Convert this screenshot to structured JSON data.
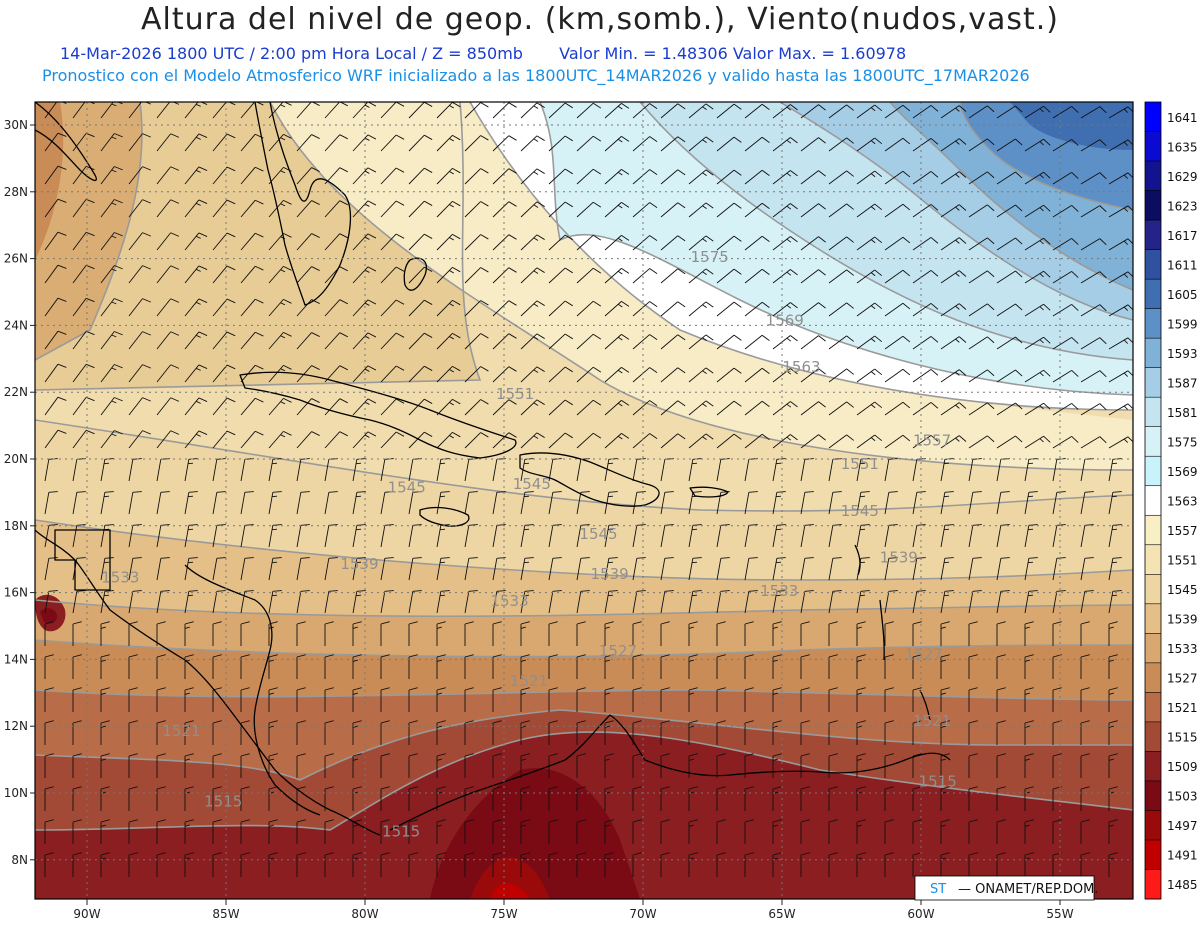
{
  "header": {
    "title": "Altura del nivel de geop. (km,somb.), Viento(nudos,vast.)",
    "line1_date": "14-Mar-2026  1800 UTC / 2:00 pm Hora Local / Z = 850mb",
    "line1_minmax": "Valor Min. = 1.48306  Valor Max. = 1.60978",
    "line2": "Pronostico con el Modelo Atmosferico WRF inicializado a las 1800UTC_14MAR2026 y valido hasta las  1800UTC_17MAR2026"
  },
  "map": {
    "lat_labels": [
      "30N",
      "28N",
      "26N",
      "24N",
      "22N",
      "20N",
      "18N",
      "16N",
      "14N",
      "12N",
      "10N",
      "8N"
    ],
    "lon_labels": [
      "90W",
      "85W",
      "80W",
      "75W",
      "70W",
      "65W",
      "60W",
      "55W"
    ],
    "contour_labels": [
      {
        "text": "1575",
        "lon": -67.6,
        "lat": 25.9
      },
      {
        "text": "1569",
        "lon": -64.9,
        "lat": 24.0
      },
      {
        "text": "1563",
        "lon": -64.3,
        "lat": 22.6
      },
      {
        "text": "1557",
        "lon": -59.6,
        "lat": 20.4
      },
      {
        "text": "1551",
        "lon": -74.6,
        "lat": 21.8
      },
      {
        "text": "1551",
        "lon": -62.2,
        "lat": 19.7
      },
      {
        "text": "1545",
        "lon": -78.5,
        "lat": 19.0
      },
      {
        "text": "1545",
        "lon": -74.0,
        "lat": 19.1
      },
      {
        "text": "1545",
        "lon": -71.6,
        "lat": 17.6
      },
      {
        "text": "1545",
        "lon": -62.2,
        "lat": 18.3
      },
      {
        "text": "1539",
        "lon": -80.2,
        "lat": 16.7
      },
      {
        "text": "1539",
        "lon": -71.2,
        "lat": 16.4
      },
      {
        "text": "1539",
        "lon": -60.8,
        "lat": 16.9
      },
      {
        "text": "1533",
        "lon": -74.8,
        "lat": 15.6
      },
      {
        "text": "1533",
        "lon": -65.1,
        "lat": 15.9
      },
      {
        "text": "1533",
        "lon": -88.8,
        "lat": 16.3
      },
      {
        "text": "1527",
        "lon": -70.9,
        "lat": 14.1
      },
      {
        "text": "1527",
        "lon": -59.9,
        "lat": 14.0
      },
      {
        "text": "1521",
        "lon": -74.1,
        "lat": 13.2
      },
      {
        "text": "1521",
        "lon": -59.6,
        "lat": 12.0
      },
      {
        "text": "1521",
        "lon": -86.6,
        "lat": 11.7
      },
      {
        "text": "1515",
        "lon": -85.1,
        "lat": 9.6
      },
      {
        "text": "1515",
        "lon": -59.4,
        "lat": 10.2
      },
      {
        "text": "1515",
        "lon": -78.7,
        "lat": 8.7
      }
    ]
  },
  "colorbar": {
    "labels": [
      "1641",
      "1635",
      "1629",
      "1623",
      "1617",
      "1611",
      "1605",
      "1599",
      "1593",
      "1587",
      "1581",
      "1575",
      "1569",
      "1563",
      "1557",
      "1551",
      "1545",
      "1539",
      "1533",
      "1527",
      "1521",
      "1515",
      "1509",
      "1503",
      "1497",
      "1491",
      "1485"
    ],
    "colors": [
      "#0000ff",
      "#0a0ad0",
      "#12148f",
      "#0c0c60",
      "#23238a",
      "#3050a0",
      "#3f6fb0",
      "#5d90c6",
      "#80b2d8",
      "#a5cde6",
      "#c4e4f0",
      "#d7f2f7",
      "#c8f3fb",
      "#ffffff",
      "#f8efc4",
      "#f5e3b4",
      "#eed6a4",
      "#e4c088",
      "#d8a870",
      "#c98c57",
      "#b86d48",
      "#a24a35",
      "#8a1e20",
      "#7a0a14",
      "#9b0a0a",
      "#c00000",
      "#ff1a1a"
    ]
  },
  "footer": {
    "credit": "— ONAMET/REP.DOM."
  }
}
